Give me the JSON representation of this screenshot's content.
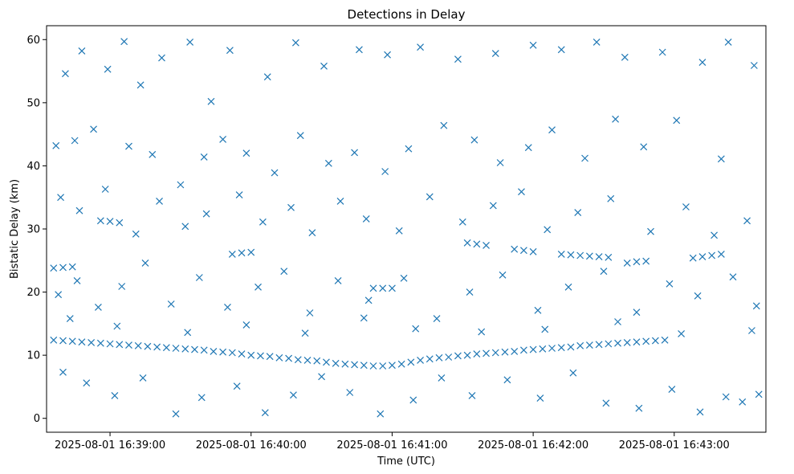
{
  "chart_data": {
    "type": "scatter",
    "title": "Detections in Delay",
    "xlabel": "Time (UTC)",
    "ylabel": "Bistatic Delay (km)",
    "x_start": "2025-08-01 16:38:36",
    "x_end": "2025-08-01 16:43:36",
    "xlim": [
      "2025-08-01 16:38:33",
      "2025-08-01 16:43:39"
    ],
    "ylim": [
      -2.2,
      62.2
    ],
    "x_ticks": [
      "2025-08-01 16:39:00",
      "2025-08-01 16:40:00",
      "2025-08-01 16:41:00",
      "2025-08-01 16:42:00",
      "2025-08-01 16:43:00"
    ],
    "y_ticks": [
      0,
      10,
      20,
      30,
      40,
      50,
      60
    ],
    "grid": false,
    "marker": "x",
    "color": "#1f77b4",
    "series": [
      {
        "points": [
          [
            "2025-08-01 16:38:36",
            12.4
          ],
          [
            "2025-08-01 16:38:40",
            12.3
          ],
          [
            "2025-08-01 16:38:44",
            12.2
          ],
          [
            "2025-08-01 16:38:48",
            12.1
          ],
          [
            "2025-08-01 16:38:52",
            12.0
          ],
          [
            "2025-08-01 16:38:56",
            11.9
          ],
          [
            "2025-08-01 16:39:00",
            11.8
          ],
          [
            "2025-08-01 16:39:04",
            11.7
          ],
          [
            "2025-08-01 16:39:08",
            11.6
          ],
          [
            "2025-08-01 16:39:12",
            11.5
          ],
          [
            "2025-08-01 16:39:16",
            11.4
          ],
          [
            "2025-08-01 16:39:20",
            11.3
          ],
          [
            "2025-08-01 16:39:24",
            11.2
          ],
          [
            "2025-08-01 16:39:28",
            11.1
          ],
          [
            "2025-08-01 16:39:32",
            11.0
          ],
          [
            "2025-08-01 16:39:36",
            10.9
          ],
          [
            "2025-08-01 16:39:40",
            10.8
          ],
          [
            "2025-08-01 16:39:44",
            10.6
          ],
          [
            "2025-08-01 16:39:48",
            10.5
          ],
          [
            "2025-08-01 16:39:52",
            10.4
          ],
          [
            "2025-08-01 16:39:56",
            10.2
          ],
          [
            "2025-08-01 16:40:00",
            10.0
          ],
          [
            "2025-08-01 16:40:04",
            9.9
          ],
          [
            "2025-08-01 16:40:08",
            9.8
          ],
          [
            "2025-08-01 16:40:12",
            9.6
          ],
          [
            "2025-08-01 16:40:16",
            9.5
          ],
          [
            "2025-08-01 16:40:20",
            9.3
          ],
          [
            "2025-08-01 16:40:24",
            9.2
          ],
          [
            "2025-08-01 16:40:28",
            9.1
          ],
          [
            "2025-08-01 16:40:32",
            8.9
          ],
          [
            "2025-08-01 16:40:36",
            8.7
          ],
          [
            "2025-08-01 16:40:40",
            8.6
          ],
          [
            "2025-08-01 16:40:44",
            8.5
          ],
          [
            "2025-08-01 16:40:48",
            8.4
          ],
          [
            "2025-08-01 16:40:52",
            8.3
          ],
          [
            "2025-08-01 16:40:56",
            8.3
          ],
          [
            "2025-08-01 16:41:00",
            8.4
          ],
          [
            "2025-08-01 16:41:04",
            8.6
          ],
          [
            "2025-08-01 16:41:08",
            8.9
          ],
          [
            "2025-08-01 16:41:12",
            9.2
          ],
          [
            "2025-08-01 16:41:16",
            9.4
          ],
          [
            "2025-08-01 16:41:20",
            9.6
          ],
          [
            "2025-08-01 16:41:24",
            9.7
          ],
          [
            "2025-08-01 16:41:28",
            9.9
          ],
          [
            "2025-08-01 16:41:32",
            10.0
          ],
          [
            "2025-08-01 16:41:36",
            10.2
          ],
          [
            "2025-08-01 16:41:40",
            10.3
          ],
          [
            "2025-08-01 16:41:44",
            10.4
          ],
          [
            "2025-08-01 16:41:48",
            10.5
          ],
          [
            "2025-08-01 16:41:52",
            10.6
          ],
          [
            "2025-08-01 16:41:56",
            10.8
          ],
          [
            "2025-08-01 16:42:00",
            10.9
          ],
          [
            "2025-08-01 16:42:04",
            11.0
          ],
          [
            "2025-08-01 16:42:08",
            11.1
          ],
          [
            "2025-08-01 16:42:12",
            11.2
          ],
          [
            "2025-08-01 16:42:16",
            11.3
          ],
          [
            "2025-08-01 16:42:20",
            11.5
          ],
          [
            "2025-08-01 16:42:24",
            11.6
          ],
          [
            "2025-08-01 16:42:28",
            11.7
          ],
          [
            "2025-08-01 16:42:32",
            11.8
          ],
          [
            "2025-08-01 16:42:36",
            11.9
          ],
          [
            "2025-08-01 16:42:40",
            12.0
          ],
          [
            "2025-08-01 16:42:44",
            12.1
          ],
          [
            "2025-08-01 16:42:48",
            12.2
          ],
          [
            "2025-08-01 16:42:52",
            12.3
          ],
          [
            "2025-08-01 16:42:56",
            12.4
          ],
          [
            "2025-08-01 16:38:36",
            23.8
          ],
          [
            "2025-08-01 16:38:40",
            23.9
          ],
          [
            "2025-08-01 16:38:44",
            24.0
          ],
          [
            "2025-08-01 16:39:52",
            26.0
          ],
          [
            "2025-08-01 16:39:56",
            26.2
          ],
          [
            "2025-08-01 16:40:00",
            26.3
          ],
          [
            "2025-08-01 16:41:32",
            27.8
          ],
          [
            "2025-08-01 16:41:36",
            27.6
          ],
          [
            "2025-08-01 16:41:40",
            27.4
          ],
          [
            "2025-08-01 16:41:52",
            26.8
          ],
          [
            "2025-08-01 16:41:56",
            26.6
          ],
          [
            "2025-08-01 16:42:00",
            26.4
          ],
          [
            "2025-08-01 16:42:12",
            26.0
          ],
          [
            "2025-08-01 16:42:16",
            25.9
          ],
          [
            "2025-08-01 16:42:20",
            25.8
          ],
          [
            "2025-08-01 16:42:24",
            25.7
          ],
          [
            "2025-08-01 16:42:28",
            25.6
          ],
          [
            "2025-08-01 16:42:32",
            25.5
          ],
          [
            "2025-08-01 16:42:40",
            24.6
          ],
          [
            "2025-08-01 16:42:44",
            24.8
          ],
          [
            "2025-08-01 16:42:48",
            24.9
          ],
          [
            "2025-08-01 16:43:08",
            25.4
          ],
          [
            "2025-08-01 16:43:12",
            25.6
          ],
          [
            "2025-08-01 16:43:16",
            25.8
          ],
          [
            "2025-08-01 16:43:20",
            26.0
          ],
          [
            "2025-08-01 16:38:56",
            31.3
          ],
          [
            "2025-08-01 16:39:00",
            31.2
          ],
          [
            "2025-08-01 16:39:04",
            31.0
          ],
          [
            "2025-08-01 16:40:52",
            20.6
          ],
          [
            "2025-08-01 16:40:56",
            20.6
          ],
          [
            "2025-08-01 16:41:00",
            20.6
          ],
          [
            "2025-08-01 16:38:41",
            54.6
          ],
          [
            "2025-08-01 16:38:48",
            58.2
          ],
          [
            "2025-08-01 16:38:59",
            55.3
          ],
          [
            "2025-08-01 16:39:06",
            59.7
          ],
          [
            "2025-08-01 16:39:13",
            52.8
          ],
          [
            "2025-08-01 16:39:22",
            57.1
          ],
          [
            "2025-08-01 16:39:34",
            59.6
          ],
          [
            "2025-08-01 16:39:43",
            50.2
          ],
          [
            "2025-08-01 16:39:51",
            58.3
          ],
          [
            "2025-08-01 16:40:07",
            54.1
          ],
          [
            "2025-08-01 16:40:19",
            59.5
          ],
          [
            "2025-08-01 16:40:31",
            55.8
          ],
          [
            "2025-08-01 16:40:46",
            58.4
          ],
          [
            "2025-08-01 16:40:58",
            57.6
          ],
          [
            "2025-08-01 16:41:12",
            58.8
          ],
          [
            "2025-08-01 16:41:28",
            56.9
          ],
          [
            "2025-08-01 16:41:44",
            57.8
          ],
          [
            "2025-08-01 16:42:00",
            59.1
          ],
          [
            "2025-08-01 16:42:12",
            58.4
          ],
          [
            "2025-08-01 16:42:27",
            59.6
          ],
          [
            "2025-08-01 16:42:39",
            57.2
          ],
          [
            "2025-08-01 16:42:55",
            58.0
          ],
          [
            "2025-08-01 16:43:12",
            56.4
          ],
          [
            "2025-08-01 16:43:23",
            59.6
          ],
          [
            "2025-08-01 16:43:34",
            55.9
          ],
          [
            "2025-08-01 16:38:37",
            43.2
          ],
          [
            "2025-08-01 16:38:45",
            44.0
          ],
          [
            "2025-08-01 16:38:53",
            45.8
          ],
          [
            "2025-08-01 16:39:08",
            43.1
          ],
          [
            "2025-08-01 16:39:18",
            41.8
          ],
          [
            "2025-08-01 16:39:30",
            37.0
          ],
          [
            "2025-08-01 16:39:40",
            41.4
          ],
          [
            "2025-08-01 16:39:48",
            44.2
          ],
          [
            "2025-08-01 16:39:58",
            42.0
          ],
          [
            "2025-08-01 16:40:10",
            38.9
          ],
          [
            "2025-08-01 16:40:21",
            44.8
          ],
          [
            "2025-08-01 16:40:33",
            40.4
          ],
          [
            "2025-08-01 16:40:44",
            42.1
          ],
          [
            "2025-08-01 16:40:57",
            39.1
          ],
          [
            "2025-08-01 16:41:07",
            42.7
          ],
          [
            "2025-08-01 16:41:22",
            46.4
          ],
          [
            "2025-08-01 16:41:35",
            44.1
          ],
          [
            "2025-08-01 16:41:46",
            40.5
          ],
          [
            "2025-08-01 16:41:58",
            42.9
          ],
          [
            "2025-08-01 16:42:08",
            45.7
          ],
          [
            "2025-08-01 16:42:22",
            41.2
          ],
          [
            "2025-08-01 16:42:35",
            47.4
          ],
          [
            "2025-08-01 16:42:47",
            43.0
          ],
          [
            "2025-08-01 16:43:01",
            47.2
          ],
          [
            "2025-08-01 16:43:20",
            41.1
          ],
          [
            "2025-08-01 16:38:39",
            35.0
          ],
          [
            "2025-08-01 16:38:47",
            32.9
          ],
          [
            "2025-08-01 16:38:58",
            36.3
          ],
          [
            "2025-08-01 16:39:11",
            29.2
          ],
          [
            "2025-08-01 16:39:21",
            34.4
          ],
          [
            "2025-08-01 16:39:32",
            30.4
          ],
          [
            "2025-08-01 16:39:41",
            32.4
          ],
          [
            "2025-08-01 16:39:55",
            35.4
          ],
          [
            "2025-08-01 16:40:05",
            31.1
          ],
          [
            "2025-08-01 16:40:17",
            33.4
          ],
          [
            "2025-08-01 16:40:26",
            29.4
          ],
          [
            "2025-08-01 16:40:38",
            34.4
          ],
          [
            "2025-08-01 16:40:49",
            31.6
          ],
          [
            "2025-08-01 16:41:03",
            29.7
          ],
          [
            "2025-08-01 16:41:16",
            35.1
          ],
          [
            "2025-08-01 16:41:30",
            31.1
          ],
          [
            "2025-08-01 16:41:43",
            33.7
          ],
          [
            "2025-08-01 16:41:55",
            35.9
          ],
          [
            "2025-08-01 16:42:06",
            29.9
          ],
          [
            "2025-08-01 16:42:19",
            32.6
          ],
          [
            "2025-08-01 16:42:33",
            34.8
          ],
          [
            "2025-08-01 16:42:50",
            29.6
          ],
          [
            "2025-08-01 16:43:05",
            33.5
          ],
          [
            "2025-08-01 16:43:17",
            29.0
          ],
          [
            "2025-08-01 16:43:31",
            31.3
          ],
          [
            "2025-08-01 16:38:38",
            19.6
          ],
          [
            "2025-08-01 16:38:46",
            21.8
          ],
          [
            "2025-08-01 16:38:55",
            17.6
          ],
          [
            "2025-08-01 16:39:05",
            20.9
          ],
          [
            "2025-08-01 16:39:15",
            24.6
          ],
          [
            "2025-08-01 16:39:26",
            18.1
          ],
          [
            "2025-08-01 16:39:38",
            22.3
          ],
          [
            "2025-08-01 16:39:50",
            17.6
          ],
          [
            "2025-08-01 16:40:03",
            20.8
          ],
          [
            "2025-08-01 16:40:14",
            23.3
          ],
          [
            "2025-08-01 16:40:25",
            16.7
          ],
          [
            "2025-08-01 16:40:37",
            21.8
          ],
          [
            "2025-08-01 16:40:50",
            18.7
          ],
          [
            "2025-08-01 16:41:05",
            22.2
          ],
          [
            "2025-08-01 16:41:19",
            15.8
          ],
          [
            "2025-08-01 16:41:33",
            20.0
          ],
          [
            "2025-08-01 16:41:47",
            22.7
          ],
          [
            "2025-08-01 16:42:02",
            17.1
          ],
          [
            "2025-08-01 16:42:15",
            20.8
          ],
          [
            "2025-08-01 16:42:30",
            23.3
          ],
          [
            "2025-08-01 16:42:44",
            16.8
          ],
          [
            "2025-08-01 16:42:58",
            21.3
          ],
          [
            "2025-08-01 16:43:10",
            19.4
          ],
          [
            "2025-08-01 16:43:25",
            22.4
          ],
          [
            "2025-08-01 16:43:35",
            17.8
          ],
          [
            "2025-08-01 16:38:40",
            7.3
          ],
          [
            "2025-08-01 16:38:50",
            5.6
          ],
          [
            "2025-08-01 16:39:02",
            3.6
          ],
          [
            "2025-08-01 16:39:14",
            6.4
          ],
          [
            "2025-08-01 16:39:28",
            0.7
          ],
          [
            "2025-08-01 16:39:39",
            3.3
          ],
          [
            "2025-08-01 16:39:54",
            5.1
          ],
          [
            "2025-08-01 16:40:06",
            0.9
          ],
          [
            "2025-08-01 16:40:18",
            3.7
          ],
          [
            "2025-08-01 16:40:30",
            6.6
          ],
          [
            "2025-08-01 16:40:42",
            4.1
          ],
          [
            "2025-08-01 16:40:55",
            0.7
          ],
          [
            "2025-08-01 16:41:09",
            2.9
          ],
          [
            "2025-08-01 16:41:21",
            6.4
          ],
          [
            "2025-08-01 16:41:34",
            3.6
          ],
          [
            "2025-08-01 16:41:49",
            6.1
          ],
          [
            "2025-08-01 16:42:03",
            3.2
          ],
          [
            "2025-08-01 16:42:17",
            7.2
          ],
          [
            "2025-08-01 16:42:31",
            2.4
          ],
          [
            "2025-08-01 16:42:45",
            1.6
          ],
          [
            "2025-08-01 16:42:59",
            4.6
          ],
          [
            "2025-08-01 16:43:11",
            1.0
          ],
          [
            "2025-08-01 16:43:22",
            3.4
          ],
          [
            "2025-08-01 16:43:29",
            2.6
          ],
          [
            "2025-08-01 16:43:36",
            3.8
          ],
          [
            "2025-08-01 16:38:43",
            15.8
          ],
          [
            "2025-08-01 16:39:03",
            14.6
          ],
          [
            "2025-08-01 16:39:33",
            13.6
          ],
          [
            "2025-08-01 16:39:58",
            14.8
          ],
          [
            "2025-08-01 16:40:23",
            13.5
          ],
          [
            "2025-08-01 16:40:48",
            15.9
          ],
          [
            "2025-08-01 16:41:10",
            14.2
          ],
          [
            "2025-08-01 16:41:38",
            13.7
          ],
          [
            "2025-08-01 16:42:05",
            14.1
          ],
          [
            "2025-08-01 16:42:36",
            15.3
          ],
          [
            "2025-08-01 16:43:03",
            13.4
          ],
          [
            "2025-08-01 16:43:33",
            13.9
          ]
        ]
      }
    ]
  }
}
